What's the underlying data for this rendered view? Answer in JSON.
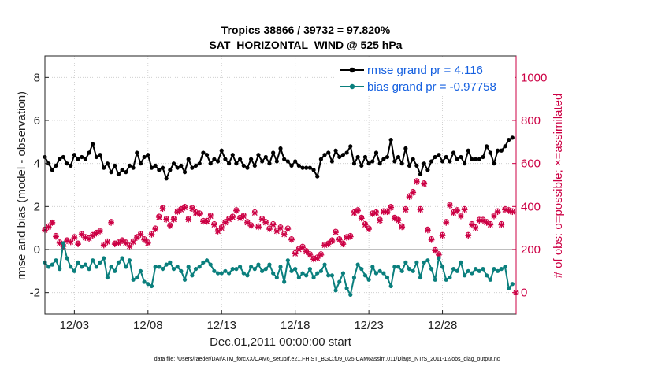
{
  "chart_data": {
    "type": "line",
    "title": "Tropics 38866 / 39732 = 97.820%",
    "subtitle": "SAT_HORIZONTAL_WIND @ 525 hPa",
    "xlabel": "Dec.01,2011 00:00:00 start",
    "ylabel": "rmse and bias (model - observation)",
    "y2label": "# of obs: o=possible; ×=assimilated",
    "xlim": [
      0,
      128
    ],
    "ylim": [
      -3,
      9
    ],
    "y2lim": [
      -100,
      1100
    ],
    "x_ticks": [
      {
        "x": 8,
        "label": "12/03"
      },
      {
        "x": 28,
        "label": "12/08"
      },
      {
        "x": 48,
        "label": "12/13"
      },
      {
        "x": 68,
        "label": "12/18"
      },
      {
        "x": 88,
        "label": "12/23"
      },
      {
        "x": 108,
        "label": "12/28"
      }
    ],
    "y_ticks": [
      -2,
      0,
      2,
      4,
      6,
      8
    ],
    "y2_ticks": [
      0,
      200,
      400,
      600,
      800,
      1000
    ],
    "grid": true,
    "zero_line": 0,
    "legend_position": "top-right",
    "series": [
      {
        "name": "rmse grand pr = 4.116",
        "color": "#000000",
        "axis": "left",
        "values": [
          4.3,
          4.0,
          3.7,
          3.9,
          4.2,
          4.3,
          4.0,
          3.9,
          4.4,
          4.2,
          4.3,
          4.2,
          4.5,
          4.9,
          4.3,
          4.4,
          3.8,
          4.0,
          3.6,
          3.9,
          3.5,
          3.7,
          3.6,
          3.9,
          3.8,
          4.5,
          4.0,
          4.3,
          4.4,
          3.8,
          3.9,
          3.7,
          3.8,
          3.3,
          3.7,
          4.0,
          3.8,
          3.9,
          3.6,
          4.2,
          3.8,
          3.9,
          4.0,
          4.5,
          4.4,
          4.0,
          4.2,
          4.1,
          4.6,
          4.2,
          4.0,
          4.4,
          4.0,
          4.2,
          3.9,
          3.8,
          4.2,
          3.9,
          4.4,
          4.1,
          4.3,
          4.0,
          4.5,
          4.1,
          4.7,
          4.2,
          4.1,
          3.9,
          4.1,
          3.9,
          3.8,
          3.8,
          3.8,
          3.7,
          3.4,
          4.2,
          4.4,
          4.5,
          4.1,
          4.6,
          4.3,
          4.4,
          4.5,
          4.8,
          4.0,
          4.3,
          3.9,
          4.3,
          4.0,
          4.1,
          4.5,
          4.0,
          4.2,
          4.3,
          5.1,
          4.1,
          4.3,
          4.0,
          4.7,
          3.9,
          4.2,
          3.9,
          3.5,
          4.0,
          3.7,
          4.1,
          4.3,
          4.4,
          4.1,
          4.3,
          4.1,
          4.5,
          4.2,
          4.3,
          4.0,
          4.6,
          4.2,
          4.2,
          4.2,
          4.3,
          4.8,
          4.5,
          4.0,
          4.6,
          4.6,
          4.8,
          5.1,
          5.2
        ]
      },
      {
        "name": "bias grand pr = -0.97758",
        "color": "#0a7f7d",
        "axis": "left",
        "values": [
          -0.6,
          -0.8,
          -0.7,
          -0.5,
          -0.9,
          0.3,
          -0.4,
          -0.8,
          -1.0,
          -0.6,
          -0.8,
          -0.7,
          -0.9,
          -0.5,
          -0.8,
          -0.6,
          -0.4,
          -1.3,
          -0.8,
          -1.0,
          -0.6,
          -0.4,
          -0.8,
          -0.5,
          -1.4,
          -1.3,
          -1.0,
          -1.5,
          -1.6,
          -1.7,
          -0.8,
          -0.8,
          -0.9,
          -0.7,
          -0.6,
          -0.9,
          -0.8,
          -1.0,
          -1.4,
          -0.8,
          -1.2,
          -0.9,
          -0.8,
          -0.6,
          -0.5,
          -0.7,
          -1.0,
          -1.1,
          -1.1,
          -1.0,
          -1.1,
          -0.9,
          -0.9,
          -0.8,
          -1.1,
          -1.2,
          -0.8,
          -0.9,
          -0.7,
          -1.0,
          -0.9,
          -0.7,
          -1.1,
          -1.3,
          -0.8,
          -1.5,
          -0.5,
          -1.0,
          -0.9,
          -1.3,
          -1.1,
          -1.2,
          -0.9,
          -1.3,
          -1.1,
          -1.0,
          -0.7,
          -1.2,
          -1.2,
          -1.9,
          -1.5,
          -1.1,
          -1.8,
          -2.1,
          -1.3,
          -0.7,
          -0.9,
          -1.2,
          -1.4,
          -0.8,
          -1.1,
          -1.0,
          -1.1,
          -1.3,
          -1.7,
          -0.8,
          -0.8,
          -1.0,
          -0.6,
          -0.9,
          -1.0,
          -0.6,
          -1.3,
          -0.6,
          -0.5,
          -0.9,
          -1.4,
          -0.4,
          -0.8,
          -1.4,
          -1.3,
          -0.9,
          -1.0,
          -0.6,
          -1.2,
          -1.0,
          -1.1,
          -0.9,
          -1.0,
          -0.9,
          -1.2,
          -1.4,
          -0.9,
          -1.0,
          -0.9,
          -0.8,
          -1.8,
          -1.6
        ]
      },
      {
        "name": "# of obs (possible)",
        "marker": "o",
        "color": "#cc0044",
        "axis": "right",
        "values": [
          295,
          310,
          325,
          265,
          235,
          220,
          245,
          240,
          260,
          230,
          275,
          260,
          255,
          270,
          280,
          290,
          225,
          240,
          330,
          230,
          235,
          245,
          235,
          220,
          240,
          260,
          275,
          250,
          235,
          275,
          300,
          355,
          395,
          345,
          315,
          345,
          380,
          390,
          400,
          345,
          395,
          375,
          370,
          335,
          335,
          360,
          320,
          290,
          305,
          330,
          345,
          355,
          385,
          350,
          360,
          330,
          315,
          375,
          310,
          345,
          330,
          300,
          320,
          290,
          305,
          275,
          300,
          250,
          185,
          205,
          215,
          195,
          180,
          160,
          165,
          180,
          225,
          230,
          245,
          285,
          250,
          230,
          260,
          265,
          375,
          385,
          350,
          320,
          300,
          370,
          375,
          340,
          380,
          380,
          400,
          350,
          340,
          310,
          390,
          450,
          470,
          520,
          390,
          510,
          295,
          250,
          200,
          180,
          270,
          330,
          410,
          375,
          385,
          360,
          390,
          270,
          320,
          305,
          340,
          340,
          330,
          320,
          360,
          380,
          320,
          390,
          385,
          380
        ]
      },
      {
        "name": "# of obs (assimilated)",
        "marker": "x",
        "color": "#cc0044",
        "axis": "right",
        "values": [
          290,
          305,
          325,
          260,
          230,
          215,
          240,
          235,
          255,
          225,
          270,
          255,
          250,
          265,
          275,
          285,
          220,
          235,
          325,
          225,
          230,
          240,
          230,
          215,
          235,
          255,
          270,
          245,
          230,
          270,
          295,
          350,
          390,
          340,
          310,
          340,
          375,
          385,
          395,
          340,
          390,
          370,
          365,
          330,
          330,
          355,
          315,
          285,
          300,
          325,
          340,
          350,
          380,
          345,
          355,
          325,
          310,
          370,
          305,
          340,
          325,
          295,
          315,
          285,
          300,
          270,
          295,
          245,
          180,
          200,
          210,
          190,
          175,
          155,
          160,
          175,
          220,
          225,
          240,
          280,
          245,
          225,
          255,
          260,
          370,
          380,
          345,
          315,
          295,
          365,
          370,
          335,
          375,
          375,
          395,
          345,
          335,
          305,
          385,
          445,
          465,
          515,
          385,
          505,
          290,
          245,
          195,
          175,
          265,
          325,
          405,
          370,
          380,
          355,
          385,
          265,
          315,
          300,
          335,
          335,
          325,
          315,
          355,
          375,
          315,
          385,
          380,
          375
        ]
      }
    ],
    "extra_points": [
      {
        "series": "# of obs (possible)",
        "x": 128,
        "value": 0
      }
    ]
  },
  "footer": "data file: /Users/raeder/DAI/ATM_forcXX/CAM6_setup/f.e21.FHIST_BGC.f09_025.CAM6assim.011/Diags_NTrS_2011-12/obs_diag_output.nc"
}
